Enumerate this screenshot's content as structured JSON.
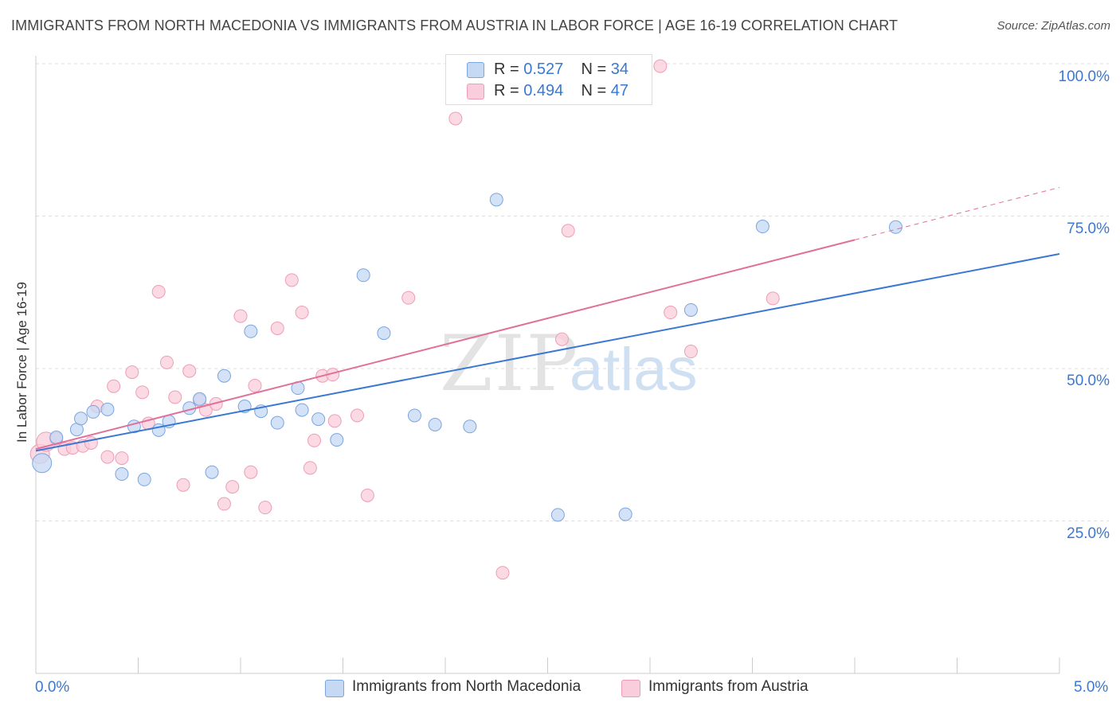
{
  "title": "IMMIGRANTS FROM NORTH MACEDONIA VS IMMIGRANTS FROM AUSTRIA IN LABOR FORCE | AGE 16-19 CORRELATION CHART",
  "source": "Source: ZipAtlas.com",
  "watermark": {
    "zip": "ZIP",
    "atlas": "atlas"
  },
  "legend": {
    "rows": [
      {
        "r_label": "R =",
        "r_value": "0.527",
        "n_label": "N =",
        "n_value": "34"
      },
      {
        "r_label": "R =",
        "r_value": "0.494",
        "n_label": "N =",
        "n_value": "47"
      }
    ]
  },
  "bottom_legend": [
    "Immigrants from North Macedonia",
    "Immigrants from Austria"
  ],
  "colors": {
    "blue_fill": "#c5d8f4",
    "blue_stroke": "#7aa5df",
    "blue_line": "#3a78d4",
    "pink_fill": "#f9cddb",
    "pink_stroke": "#ee9db7",
    "pink_line": "#e0709a",
    "tick_text": "#3a78d4",
    "grid": "#dddddd"
  },
  "chart_data": {
    "type": "scatter",
    "title": "IMMIGRANTS FROM NORTH MACEDONIA VS IMMIGRANTS FROM AUSTRIA IN LABOR FORCE | AGE 16-19 CORRELATION CHART",
    "xlabel": "",
    "ylabel": "In Labor Force | Age 16-19",
    "xlim": [
      0,
      5
    ],
    "ylim": [
      0,
      105
    ],
    "x_tick_labels": [
      "0.0%",
      "5.0%"
    ],
    "y_ticks": [
      25,
      50,
      75,
      100
    ],
    "y_tick_labels": [
      "25.0%",
      "50.0%",
      "75.0%",
      "100.0%"
    ],
    "grid": "horizontal dashed",
    "legend_position": "top-center",
    "series": [
      {
        "name": "Immigrants from North Macedonia",
        "r": 0.527,
        "n": 34,
        "trend": {
          "x0": 0.0,
          "y0": 36.5,
          "x1": 5.0,
          "y1": 68.8,
          "dashed_from": null
        },
        "points": [
          [
            0.03,
            34.5
          ],
          [
            0.1,
            38.7
          ],
          [
            0.2,
            40.0
          ],
          [
            0.22,
            41.8
          ],
          [
            0.28,
            42.9
          ],
          [
            0.35,
            43.3
          ],
          [
            0.42,
            32.7
          ],
          [
            0.48,
            40.5
          ],
          [
            0.53,
            31.8
          ],
          [
            0.6,
            39.9
          ],
          [
            0.65,
            41.3
          ],
          [
            0.75,
            43.5
          ],
          [
            0.8,
            45.0
          ],
          [
            0.86,
            33.0
          ],
          [
            0.92,
            48.8
          ],
          [
            1.02,
            43.8
          ],
          [
            1.05,
            56.1
          ],
          [
            1.1,
            43.0
          ],
          [
            1.18,
            41.1
          ],
          [
            1.28,
            46.8
          ],
          [
            1.3,
            43.2
          ],
          [
            1.38,
            41.7
          ],
          [
            1.47,
            38.3
          ],
          [
            1.6,
            65.3
          ],
          [
            1.7,
            55.8
          ],
          [
            1.85,
            42.3
          ],
          [
            1.95,
            40.8
          ],
          [
            2.12,
            40.5
          ],
          [
            2.25,
            77.7
          ],
          [
            2.55,
            26.0
          ],
          [
            2.88,
            26.1
          ],
          [
            3.2,
            59.6
          ],
          [
            3.55,
            73.3
          ],
          [
            4.2,
            73.2
          ]
        ]
      },
      {
        "name": "Immigrants from Austria",
        "r": 0.494,
        "n": 47,
        "trend": {
          "x0": 0.0,
          "y0": 36.8,
          "x1": 4.0,
          "y1": 71.1,
          "dashed_to_x": 5.0,
          "dashed_to_y": 79.7
        },
        "points": [
          [
            0.02,
            36.0
          ],
          [
            0.05,
            38.0
          ],
          [
            0.1,
            38.5
          ],
          [
            0.14,
            36.8
          ],
          [
            0.18,
            37.0
          ],
          [
            0.23,
            37.3
          ],
          [
            0.27,
            37.8
          ],
          [
            0.3,
            43.8
          ],
          [
            0.35,
            35.5
          ],
          [
            0.38,
            47.1
          ],
          [
            0.42,
            35.3
          ],
          [
            0.47,
            49.4
          ],
          [
            0.52,
            46.1
          ],
          [
            0.55,
            41.0
          ],
          [
            0.6,
            62.6
          ],
          [
            0.64,
            51.0
          ],
          [
            0.68,
            45.3
          ],
          [
            0.72,
            30.9
          ],
          [
            0.75,
            49.6
          ],
          [
            0.8,
            44.8
          ],
          [
            0.83,
            43.2
          ],
          [
            0.88,
            44.2
          ],
          [
            0.92,
            27.8
          ],
          [
            0.96,
            30.6
          ],
          [
            1.0,
            58.6
          ],
          [
            1.05,
            33.0
          ],
          [
            1.07,
            47.2
          ],
          [
            1.12,
            27.2
          ],
          [
            1.18,
            56.6
          ],
          [
            1.25,
            64.5
          ],
          [
            1.3,
            59.2
          ],
          [
            1.34,
            33.7
          ],
          [
            1.36,
            38.2
          ],
          [
            1.4,
            48.8
          ],
          [
            1.45,
            49.0
          ],
          [
            1.46,
            41.4
          ],
          [
            1.57,
            42.3
          ],
          [
            1.62,
            29.2
          ],
          [
            1.82,
            61.6
          ],
          [
            2.05,
            91.0
          ],
          [
            2.28,
            16.5
          ],
          [
            2.57,
            54.8
          ],
          [
            2.6,
            72.6
          ],
          [
            3.05,
            99.6
          ],
          [
            3.1,
            59.2
          ],
          [
            3.2,
            52.8
          ],
          [
            3.6,
            61.5
          ]
        ]
      }
    ]
  }
}
